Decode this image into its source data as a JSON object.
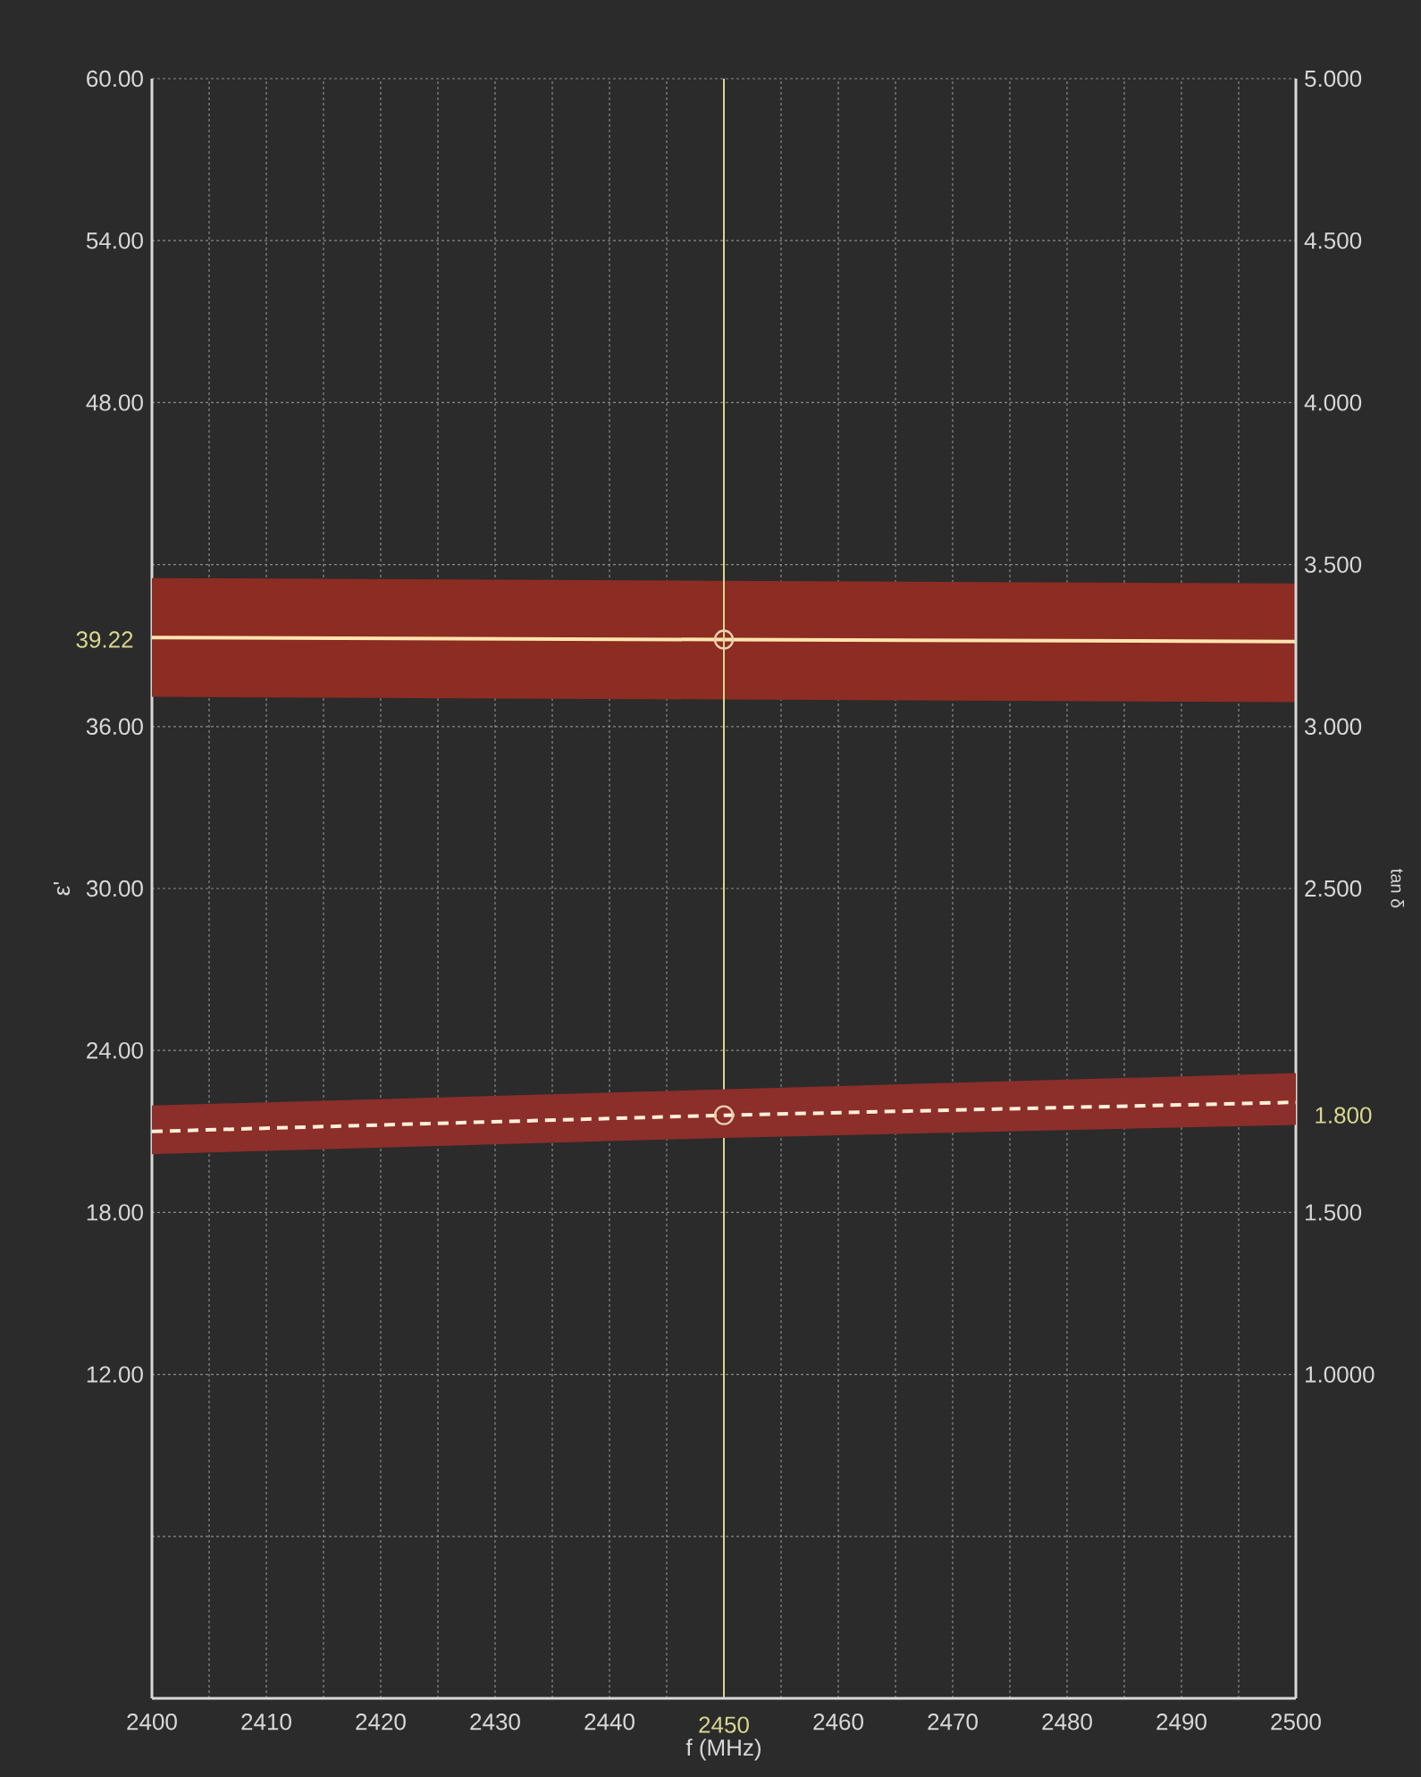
{
  "chart_data": {
    "type": "line",
    "xlabel": "f (MHz)",
    "ylabel": "ε'",
    "y2label": "tan δ",
    "xlim": [
      2400,
      2500
    ],
    "ylim": [
      0,
      60
    ],
    "y2lim": [
      0,
      5
    ],
    "xticks": [
      {
        "value": 2400,
        "label": "2400"
      },
      {
        "value": 2410,
        "label": "2410"
      },
      {
        "value": 2420,
        "label": "2420"
      },
      {
        "value": 2430,
        "label": "2430"
      },
      {
        "value": 2440,
        "label": "2440"
      },
      {
        "value": 2450,
        "label": null
      },
      {
        "value": 2460,
        "label": "2460"
      },
      {
        "value": 2470,
        "label": "2470"
      },
      {
        "value": 2480,
        "label": "2480"
      },
      {
        "value": 2490,
        "label": "2490"
      },
      {
        "value": 2500,
        "label": "2500"
      }
    ],
    "yticks": [
      {
        "value": 0,
        "label": null
      },
      {
        "value": 6,
        "label": null
      },
      {
        "value": 12,
        "label": "12.00"
      },
      {
        "value": 18,
        "label": "18.00"
      },
      {
        "value": 24,
        "label": "24.00"
      },
      {
        "value": 30,
        "label": "30.00"
      },
      {
        "value": 36,
        "label": "36.00"
      },
      {
        "value": 42,
        "label": null
      },
      {
        "value": 48,
        "label": "48.00"
      },
      {
        "value": 54,
        "label": "54.00"
      },
      {
        "value": 60,
        "label": "60.00"
      }
    ],
    "y2ticks": [
      {
        "value": 0.5,
        "label": null
      },
      {
        "value": 1,
        "label": "1.0000"
      },
      {
        "value": 1.5,
        "label": "1.500"
      },
      {
        "value": 2,
        "label": null
      },
      {
        "value": 2.5,
        "label": "2.500"
      },
      {
        "value": 3,
        "label": "3.000"
      },
      {
        "value": 3.5,
        "label": "3.500"
      },
      {
        "value": 4,
        "label": "4.000"
      },
      {
        "value": 4.5,
        "label": "4.500"
      },
      {
        "value": 5,
        "label": "5.000"
      }
    ],
    "grid": true,
    "marker": "none",
    "series": [
      {
        "color": "#ffe4b0",
        "line_style": "solid",
        "x": [
          2400,
          2450,
          2500
        ],
        "values": [
          39.3,
          39.22,
          39.15
        ],
        "lower": [
          37.1,
          37.0,
          36.9
        ],
        "upper": [
          41.5,
          41.4,
          41.3
        ]
      },
      {
        "axis": "y2",
        "color": "#fff0d8",
        "line_style": "dashed",
        "x": [
          2400,
          2450,
          2500
        ],
        "values": [
          1.75,
          1.8,
          1.84
        ],
        "lower": [
          1.68,
          1.73,
          1.77
        ],
        "upper": [
          1.83,
          1.88,
          1.93
        ]
      },
      {
        "type": "scatter",
        "color": "#e8d0b0",
        "marker": "circle",
        "x": [
          2450
        ],
        "values": [
          39.22
        ]
      },
      {
        "type": "scatter",
        "axis": "y2",
        "color": "#e8d0b0",
        "marker": "circle",
        "x": [
          2450
        ],
        "values": [
          1.8
        ]
      }
    ],
    "annotations": [
      "39.22",
      "1.800"
    ],
    "ref_lines": [
      {
        "axis": "x",
        "value": 2450,
        "label": "2450",
        "color": "#d8d890"
      }
    ]
  }
}
